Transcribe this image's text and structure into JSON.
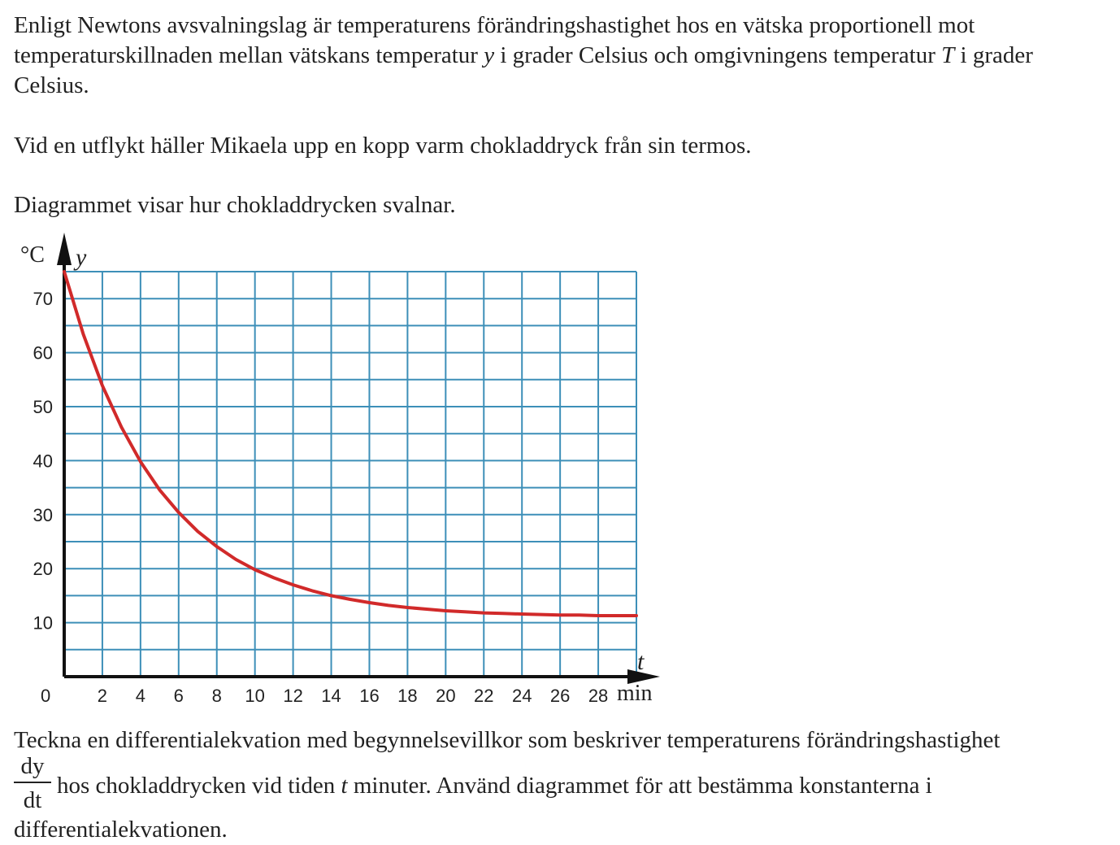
{
  "intro": {
    "p1_a": "Enligt Newtons avsvalningslag är temperaturens förändringshastighet hos en vätska proportionell mot temperaturskillnaden mellan vätskans temperatur ",
    "p1_var_y": "y",
    "p1_b": " i grader Celsius och omgivningens temperatur ",
    "p1_var_T": "T",
    "p1_c": " i grader Celsius.",
    "p2": "Vid en utflykt häller Mikaela upp en kopp varm chokladdryck från sin termos.",
    "p3": "Diagrammet visar hur chokladdrycken svalnar."
  },
  "chart_data": {
    "type": "line",
    "title": "",
    "ylabel_unit": "°C",
    "ylabel_var": "y",
    "xlabel_var": "t",
    "xlabel_unit": "min",
    "xlim": [
      0,
      30
    ],
    "ylim": [
      0,
      75
    ],
    "x_ticks": [
      2,
      4,
      6,
      8,
      10,
      12,
      14,
      16,
      18,
      20,
      22,
      24,
      26,
      28
    ],
    "y_ticks": [
      10,
      20,
      30,
      40,
      50,
      60,
      70
    ],
    "origin_label": "0",
    "grid": true,
    "grid_color": "#3d8fb8",
    "series": [
      {
        "color": "#d12a2a",
        "x": [
          0,
          1,
          2,
          3,
          4,
          5,
          6,
          7,
          8,
          9,
          10,
          11,
          12,
          13,
          14,
          15,
          16,
          17,
          18,
          19,
          20,
          21,
          22,
          23,
          24,
          25,
          26,
          27,
          28,
          29,
          30
        ],
        "y": [
          75,
          63.4,
          53.9,
          46.2,
          39.8,
          34.6,
          30.4,
          26.9,
          24.1,
          21.7,
          19.8,
          18.3,
          17.0,
          15.9,
          15.0,
          14.3,
          13.7,
          13.2,
          12.8,
          12.5,
          12.2,
          12.0,
          11.8,
          11.7,
          11.6,
          11.5,
          11.4,
          11.4,
          11.3,
          11.3,
          11.3
        ]
      }
    ]
  },
  "question": {
    "q1": "Teckna en differentialekvation med begynnelsevillkor som beskriver temperaturens förändringshastighet",
    "frac_num": "dy",
    "frac_den": "dt",
    "q2_a": " hos chokladdrycken vid tiden ",
    "q2_var_t": "t",
    "q2_b": " minuter. Använd diagrammet för att bestämma konstanterna i",
    "q3": "differentialekvationen."
  }
}
